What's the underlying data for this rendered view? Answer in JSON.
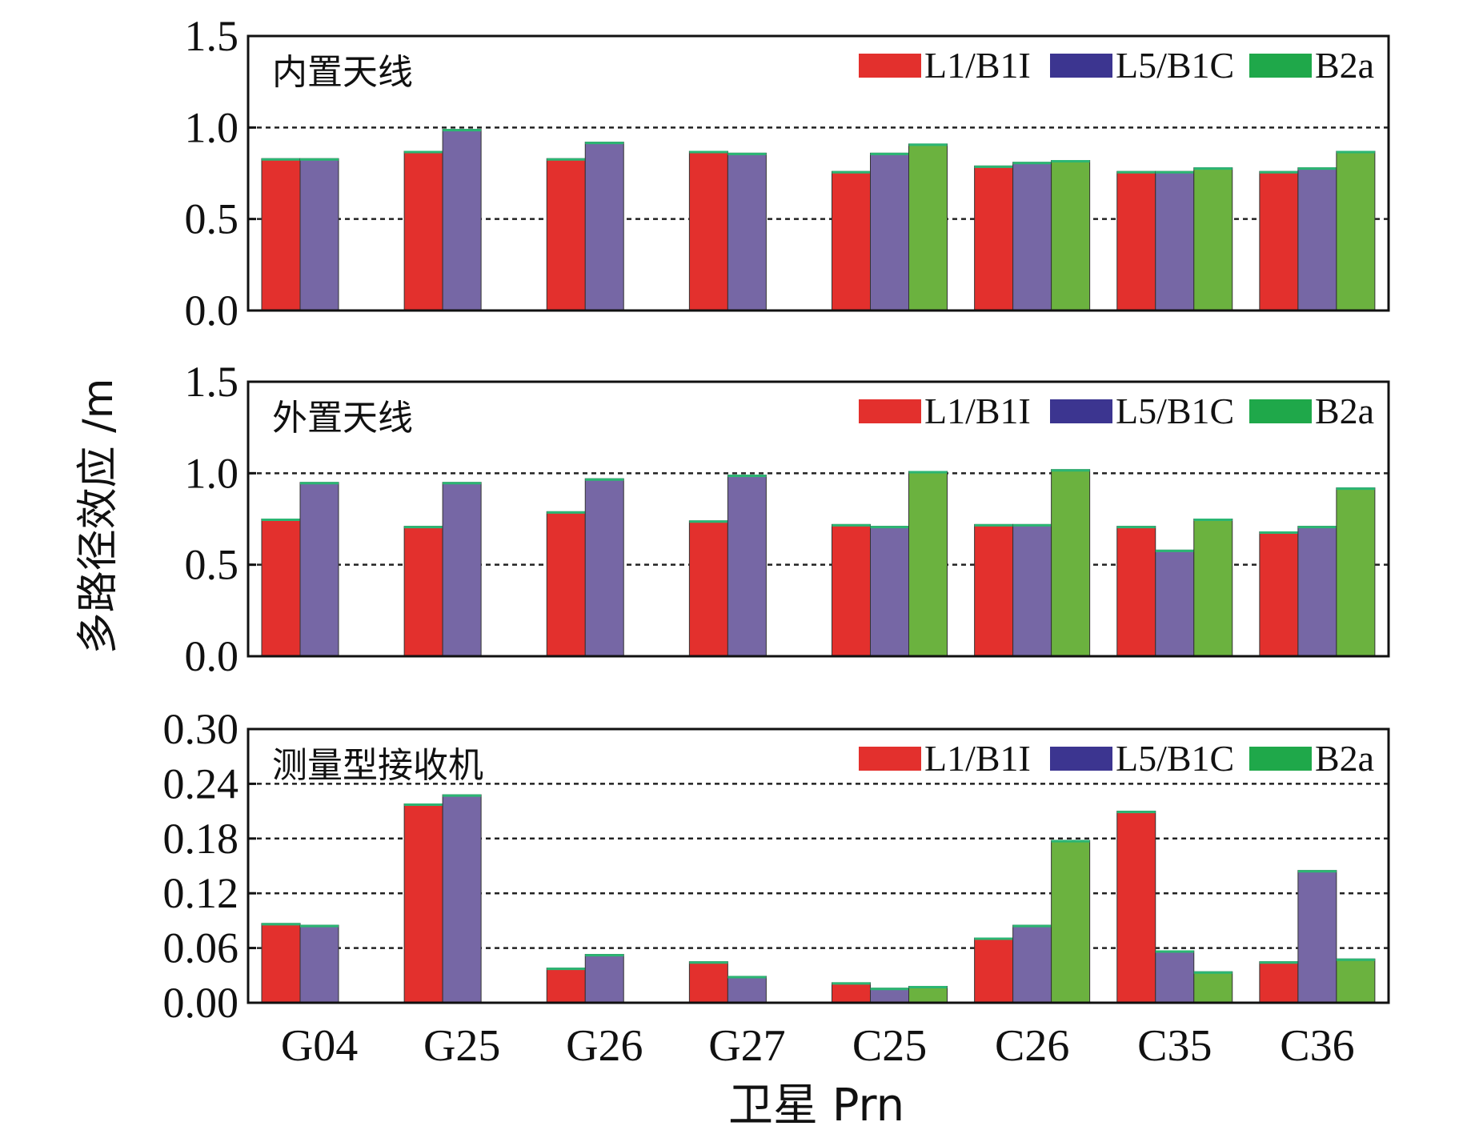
{
  "figure": {
    "ylabel": "多路径效应 /m",
    "xlabel": "卫星 Prn"
  },
  "colors": {
    "L1/B1I": "#e3302d",
    "L5/B1C": "#7667a5",
    "B2a": "#6bb23f",
    "bar_outline_top": "#2bb673",
    "legend_L5": "#3c3590",
    "legend_B2a": "#1fa84a"
  },
  "chart_data": [
    {
      "type": "bar",
      "title": "内置天线",
      "categories": [
        "G04",
        "G25",
        "G26",
        "G27",
        "C25",
        "C26",
        "C35",
        "C36"
      ],
      "series": [
        {
          "name": "L1/B1I",
          "values": [
            0.83,
            0.87,
            0.83,
            0.87,
            0.76,
            0.79,
            0.76,
            0.76
          ]
        },
        {
          "name": "L5/B1C",
          "values": [
            0.83,
            0.99,
            0.92,
            0.86,
            0.86,
            0.81,
            0.76,
            0.78
          ]
        },
        {
          "name": "B2a",
          "values": [
            null,
            null,
            null,
            null,
            0.91,
            0.82,
            0.78,
            0.87
          ]
        }
      ],
      "ylim": [
        0,
        1.5
      ],
      "yticks": [
        "0.0",
        "0.5",
        "1.0",
        "1.5"
      ],
      "gridlines": [
        0.5,
        1.0
      ],
      "legend": "top-right"
    },
    {
      "type": "bar",
      "title": "外置天线",
      "categories": [
        "G04",
        "G25",
        "G26",
        "G27",
        "C25",
        "C26",
        "C35",
        "C36"
      ],
      "series": [
        {
          "name": "L1/B1I",
          "values": [
            0.75,
            0.71,
            0.79,
            0.74,
            0.72,
            0.72,
            0.71,
            0.68
          ]
        },
        {
          "name": "L5/B1C",
          "values": [
            0.95,
            0.95,
            0.97,
            0.99,
            0.71,
            0.72,
            0.58,
            0.71
          ]
        },
        {
          "name": "B2a",
          "values": [
            null,
            null,
            null,
            null,
            1.01,
            1.02,
            0.75,
            0.92
          ]
        }
      ],
      "ylim": [
        0,
        1.5
      ],
      "yticks": [
        "0.0",
        "0.5",
        "1.0",
        "1.5"
      ],
      "gridlines": [
        0.5,
        1.0
      ],
      "legend": "top-right"
    },
    {
      "type": "bar",
      "title": "测量型接收机",
      "categories": [
        "G04",
        "G25",
        "G26",
        "G27",
        "C25",
        "C26",
        "C35",
        "C36"
      ],
      "series": [
        {
          "name": "L1/B1I",
          "values": [
            0.087,
            0.218,
            0.038,
            0.045,
            0.022,
            0.071,
            0.21,
            0.045
          ]
        },
        {
          "name": "L5/B1C",
          "values": [
            0.085,
            0.228,
            0.053,
            0.029,
            0.016,
            0.085,
            0.057,
            0.145
          ]
        },
        {
          "name": "B2a",
          "values": [
            null,
            null,
            null,
            null,
            0.018,
            0.178,
            0.034,
            0.048
          ]
        }
      ],
      "ylim": [
        0,
        0.3
      ],
      "yticks": [
        "0.00",
        "0.06",
        "0.12",
        "0.18",
        "0.24",
        "0.30"
      ],
      "gridlines": [
        0.06,
        0.12,
        0.18,
        0.24
      ],
      "legend": "top-right"
    }
  ]
}
